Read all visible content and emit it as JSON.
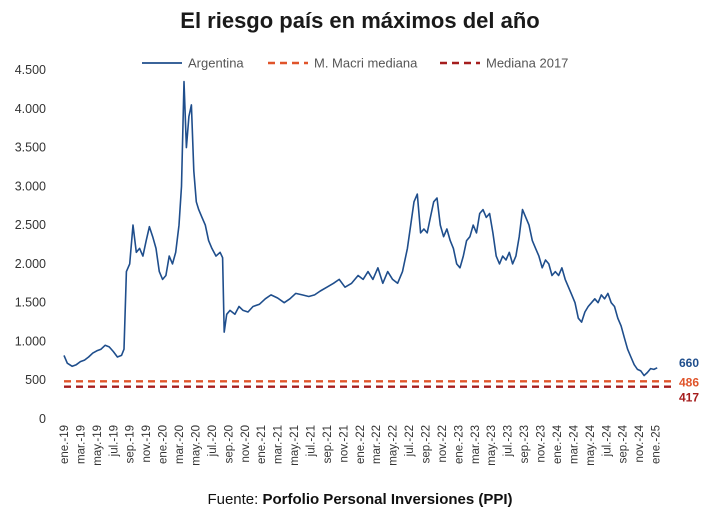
{
  "title": "El riesgo país en máximos del año",
  "source": {
    "prefix": "Fuente: ",
    "name": "Porfolio Personal Inversiones (PPI)"
  },
  "colors": {
    "argentina": "#1f4e8c",
    "macri": "#e0542a",
    "mediana2017": "#a51d1d"
  },
  "chart_data": {
    "type": "line",
    "title": "El riesgo país en máximos del año",
    "ylim": [
      0,
      4500
    ],
    "yticks": [
      0,
      500,
      1000,
      1500,
      2000,
      2500,
      3000,
      3500,
      4000,
      4500
    ],
    "ytick_labels": [
      "0",
      "500",
      "1.000",
      "1.500",
      "2.000",
      "2.500",
      "3.000",
      "3.500",
      "4.000",
      "4.500"
    ],
    "xlim": [
      0,
      74
    ],
    "xticks": [
      {
        "m": 0,
        "label": "ene.-19"
      },
      {
        "m": 2,
        "label": "mar.-19"
      },
      {
        "m": 4,
        "label": "may.-19"
      },
      {
        "m": 6,
        "label": "jul.-19"
      },
      {
        "m": 8,
        "label": "sep.-19"
      },
      {
        "m": 10,
        "label": "nov.-19"
      },
      {
        "m": 12,
        "label": "ene.-20"
      },
      {
        "m": 14,
        "label": "mar.-20"
      },
      {
        "m": 16,
        "label": "may.-20"
      },
      {
        "m": 18,
        "label": "jul.-20"
      },
      {
        "m": 20,
        "label": "sep.-20"
      },
      {
        "m": 22,
        "label": "nov.-20"
      },
      {
        "m": 24,
        "label": "ene.-21"
      },
      {
        "m": 26,
        "label": "mar.-21"
      },
      {
        "m": 28,
        "label": "may.-21"
      },
      {
        "m": 30,
        "label": "jul.-21"
      },
      {
        "m": 32,
        "label": "sep.-21"
      },
      {
        "m": 34,
        "label": "nov.-21"
      },
      {
        "m": 36,
        "label": "ene.-22"
      },
      {
        "m": 38,
        "label": "mar.-22"
      },
      {
        "m": 40,
        "label": "may.-22"
      },
      {
        "m": 42,
        "label": "jul.-22"
      },
      {
        "m": 44,
        "label": "sep.-22"
      },
      {
        "m": 46,
        "label": "nov.-22"
      },
      {
        "m": 48,
        "label": "ene.-23"
      },
      {
        "m": 50,
        "label": "mar.-23"
      },
      {
        "m": 52,
        "label": "may.-23"
      },
      {
        "m": 54,
        "label": "jul.-23"
      },
      {
        "m": 56,
        "label": "sep.-23"
      },
      {
        "m": 58,
        "label": "nov.-23"
      },
      {
        "m": 60,
        "label": "ene.-24"
      },
      {
        "m": 62,
        "label": "mar.-24"
      },
      {
        "m": 64,
        "label": "may.-24"
      },
      {
        "m": 66,
        "label": "jul.-24"
      },
      {
        "m": 68,
        "label": "sep.-24"
      },
      {
        "m": 70,
        "label": "nov.-24"
      },
      {
        "m": 72,
        "label": "ene.-25"
      }
    ],
    "legend": {
      "placement": "top"
    },
    "series": [
      {
        "name": "Argentina",
        "style": "solid",
        "end_label": "660",
        "points": [
          [
            0,
            820
          ],
          [
            0.4,
            720
          ],
          [
            1,
            680
          ],
          [
            1.5,
            700
          ],
          [
            2,
            740
          ],
          [
            2.5,
            760
          ],
          [
            3,
            800
          ],
          [
            3.5,
            850
          ],
          [
            4,
            880
          ],
          [
            4.5,
            900
          ],
          [
            5,
            950
          ],
          [
            5.5,
            930
          ],
          [
            6,
            870
          ],
          [
            6.5,
            800
          ],
          [
            7,
            820
          ],
          [
            7.3,
            900
          ],
          [
            7.6,
            1900
          ],
          [
            8,
            2000
          ],
          [
            8.4,
            2500
          ],
          [
            8.8,
            2150
          ],
          [
            9.2,
            2200
          ],
          [
            9.6,
            2100
          ],
          [
            10,
            2300
          ],
          [
            10.4,
            2480
          ],
          [
            10.8,
            2350
          ],
          [
            11.2,
            2200
          ],
          [
            11.6,
            1900
          ],
          [
            12,
            1800
          ],
          [
            12.4,
            1850
          ],
          [
            12.8,
            2100
          ],
          [
            13.2,
            2000
          ],
          [
            13.6,
            2150
          ],
          [
            14,
            2500
          ],
          [
            14.3,
            3000
          ],
          [
            14.6,
            4350
          ],
          [
            14.9,
            3500
          ],
          [
            15.2,
            3900
          ],
          [
            15.5,
            4050
          ],
          [
            15.8,
            3200
          ],
          [
            16.1,
            2800
          ],
          [
            16.4,
            2700
          ],
          [
            16.8,
            2600
          ],
          [
            17.2,
            2500
          ],
          [
            17.6,
            2300
          ],
          [
            18,
            2200
          ],
          [
            18.5,
            2100
          ],
          [
            19,
            2150
          ],
          [
            19.3,
            2080
          ],
          [
            19.5,
            1120
          ],
          [
            19.8,
            1350
          ],
          [
            20.2,
            1400
          ],
          [
            20.8,
            1350
          ],
          [
            21.3,
            1450
          ],
          [
            21.8,
            1400
          ],
          [
            22.4,
            1380
          ],
          [
            23,
            1450
          ],
          [
            23.8,
            1480
          ],
          [
            24.5,
            1550
          ],
          [
            25.2,
            1600
          ],
          [
            26,
            1560
          ],
          [
            26.8,
            1500
          ],
          [
            27.5,
            1550
          ],
          [
            28.2,
            1620
          ],
          [
            29,
            1600
          ],
          [
            29.8,
            1580
          ],
          [
            30.5,
            1600
          ],
          [
            31.2,
            1650
          ],
          [
            32,
            1700
          ],
          [
            32.8,
            1750
          ],
          [
            33.5,
            1800
          ],
          [
            34.2,
            1700
          ],
          [
            35,
            1750
          ],
          [
            35.8,
            1850
          ],
          [
            36.4,
            1800
          ],
          [
            37,
            1900
          ],
          [
            37.6,
            1800
          ],
          [
            38.2,
            1950
          ],
          [
            38.8,
            1750
          ],
          [
            39.4,
            1900
          ],
          [
            40,
            1800
          ],
          [
            40.6,
            1750
          ],
          [
            41.2,
            1900
          ],
          [
            41.8,
            2200
          ],
          [
            42.2,
            2500
          ],
          [
            42.6,
            2800
          ],
          [
            43,
            2900
          ],
          [
            43.4,
            2400
          ],
          [
            43.8,
            2450
          ],
          [
            44.2,
            2400
          ],
          [
            44.6,
            2600
          ],
          [
            45,
            2800
          ],
          [
            45.4,
            2850
          ],
          [
            45.8,
            2500
          ],
          [
            46.2,
            2350
          ],
          [
            46.6,
            2450
          ],
          [
            47,
            2300
          ],
          [
            47.4,
            2200
          ],
          [
            47.8,
            2000
          ],
          [
            48.2,
            1950
          ],
          [
            48.6,
            2100
          ],
          [
            49,
            2300
          ],
          [
            49.4,
            2350
          ],
          [
            49.8,
            2500
          ],
          [
            50.2,
            2400
          ],
          [
            50.6,
            2650
          ],
          [
            51,
            2700
          ],
          [
            51.4,
            2600
          ],
          [
            51.8,
            2650
          ],
          [
            52.2,
            2400
          ],
          [
            52.6,
            2100
          ],
          [
            53,
            2000
          ],
          [
            53.4,
            2100
          ],
          [
            53.8,
            2050
          ],
          [
            54.2,
            2150
          ],
          [
            54.6,
            2000
          ],
          [
            55,
            2100
          ],
          [
            55.4,
            2350
          ],
          [
            55.8,
            2700
          ],
          [
            56.2,
            2600
          ],
          [
            56.6,
            2500
          ],
          [
            57,
            2300
          ],
          [
            57.4,
            2200
          ],
          [
            57.8,
            2100
          ],
          [
            58.2,
            1950
          ],
          [
            58.6,
            2050
          ],
          [
            59,
            2000
          ],
          [
            59.4,
            1850
          ],
          [
            59.8,
            1900
          ],
          [
            60.2,
            1850
          ],
          [
            60.6,
            1950
          ],
          [
            61,
            1800
          ],
          [
            61.4,
            1700
          ],
          [
            61.8,
            1600
          ],
          [
            62.2,
            1500
          ],
          [
            62.6,
            1300
          ],
          [
            63,
            1250
          ],
          [
            63.4,
            1380
          ],
          [
            63.8,
            1450
          ],
          [
            64.2,
            1500
          ],
          [
            64.6,
            1550
          ],
          [
            65,
            1500
          ],
          [
            65.4,
            1600
          ],
          [
            65.8,
            1550
          ],
          [
            66.2,
            1620
          ],
          [
            66.6,
            1500
          ],
          [
            67,
            1450
          ],
          [
            67.4,
            1300
          ],
          [
            67.8,
            1200
          ],
          [
            68.2,
            1050
          ],
          [
            68.6,
            900
          ],
          [
            69,
            800
          ],
          [
            69.4,
            700
          ],
          [
            69.8,
            640
          ],
          [
            70.2,
            620
          ],
          [
            70.6,
            560
          ],
          [
            71,
            600
          ],
          [
            71.4,
            650
          ],
          [
            71.8,
            640
          ],
          [
            72.2,
            660
          ]
        ]
      },
      {
        "name": "M. Macri mediana",
        "style": "dashed",
        "value": 486,
        "end_label": "486"
      },
      {
        "name": "Mediana 2017",
        "style": "dashed",
        "value": 417,
        "end_label": "417"
      }
    ]
  }
}
